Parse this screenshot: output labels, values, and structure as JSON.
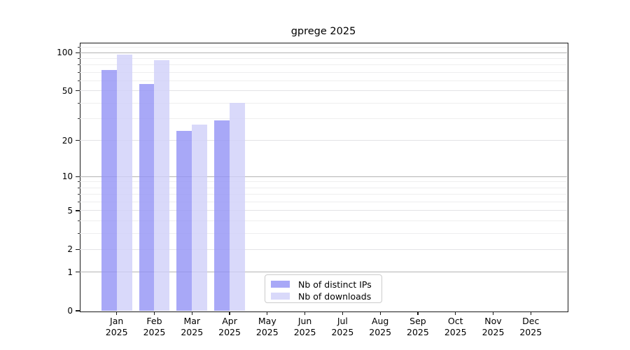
{
  "chart_data": {
    "type": "bar",
    "title": "gprege 2025",
    "categories": [
      "Jan 2025",
      "Feb 2025",
      "Mar 2025",
      "Apr 2025",
      "May 2025",
      "Jun 2025",
      "Jul 2025",
      "Aug 2025",
      "Sep 2025",
      "Oct 2025",
      "Nov 2025",
      "Dec 2025"
    ],
    "x_months": [
      "Jan",
      "Feb",
      "Mar",
      "Apr",
      "May",
      "Jun",
      "Jul",
      "Aug",
      "Sep",
      "Oct",
      "Nov",
      "Dec"
    ],
    "x_year": "2025",
    "series": [
      {
        "name": "Nb of distinct IPs",
        "color": "rgba(146,146,245,0.8)",
        "values": [
          73,
          57,
          24,
          29,
          0,
          0,
          0,
          0,
          0,
          0,
          0,
          0
        ]
      },
      {
        "name": "Nb of downloads",
        "color": "rgba(208,208,249,0.8)",
        "values": [
          96,
          87,
          27,
          40,
          0,
          0,
          0,
          0,
          0,
          0,
          0,
          0
        ]
      }
    ],
    "y_ticks": [
      0,
      1,
      2,
      5,
      10,
      20,
      50,
      100
    ],
    "y_major_gridlines": [
      1,
      10,
      100
    ],
    "y_minor_gridlines": [
      3,
      4,
      6,
      7,
      8,
      9,
      30,
      40,
      60,
      70,
      80,
      90,
      110
    ],
    "y_scale": "log1p",
    "ylim": [
      0,
      119.6
    ],
    "grid": true,
    "legend_position": "lower center"
  },
  "colors": {
    "background": "#ffffff",
    "axis": "#1a1a1a",
    "grid_major": "#b4b4b4",
    "grid_minor": "#eeeeef",
    "bar_distinct_ips": "rgba(146,146,245,0.8)",
    "bar_downloads": "rgba(208,208,249,0.8)"
  }
}
